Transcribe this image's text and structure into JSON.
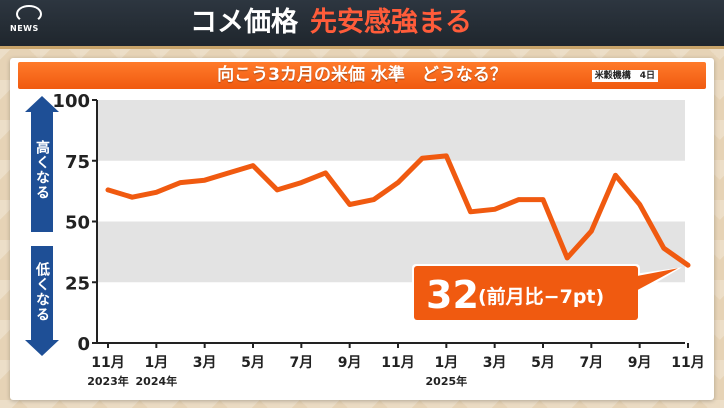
{
  "logo": {
    "brand": "NEWS"
  },
  "headline": {
    "part1": "コメ価格",
    "part2": "先安感強まる"
  },
  "subtitle": "向こう3カ月の米価 水準　どうなる？",
  "source": "米穀機構　4日",
  "side_labels": {
    "up": "高くなる",
    "down": "低くなる"
  },
  "colors": {
    "line": "#f05a10",
    "band": "#e3e3e3",
    "arrow": "#1e4f96",
    "header": "#262e37"
  },
  "chart_data": {
    "type": "line",
    "title": "向こう3カ月の米価 水準　どうなる？",
    "ylim": [
      0,
      100
    ],
    "yticks": [
      0,
      25,
      50,
      75,
      100
    ],
    "xlabels": [
      {
        "label": "11月",
        "year": "2023年"
      },
      {
        "label": "1月",
        "year": "2024年"
      },
      {
        "label": "3月",
        "year": ""
      },
      {
        "label": "5月",
        "year": ""
      },
      {
        "label": "7月",
        "year": ""
      },
      {
        "label": "9月",
        "year": ""
      },
      {
        "label": "11月",
        "year": ""
      },
      {
        "label": "1月",
        "year": "2025年"
      },
      {
        "label": "3月",
        "year": ""
      },
      {
        "label": "5月",
        "year": ""
      },
      {
        "label": "7月",
        "year": ""
      },
      {
        "label": "9月",
        "year": ""
      },
      {
        "label": "11月",
        "year": ""
      }
    ],
    "categories": [
      "2023年11月",
      "2023年12月",
      "2024年1月",
      "2024年2月",
      "2024年3月",
      "2024年4月",
      "2024年5月",
      "2024年6月",
      "2024年7月",
      "2024年8月",
      "2024年9月",
      "2024年10月",
      "2024年11月",
      "2024年12月",
      "2025年1月",
      "2025年2月",
      "2025年3月",
      "2025年4月",
      "2025年5月",
      "2025年6月",
      "2025年7月",
      "2025年8月",
      "2025年9月",
      "2025年10月",
      "2025年11月"
    ],
    "values": [
      63,
      60,
      62,
      66,
      67,
      70,
      73,
      63,
      66,
      70,
      57,
      59,
      66,
      76,
      77,
      54,
      55,
      59,
      59,
      35,
      46,
      69,
      57,
      39,
      32
    ],
    "grid_bands": [
      [
        25,
        50
      ],
      [
        75,
        100
      ]
    ],
    "annotation": {
      "value": "32",
      "text": "(前月比−7pt)"
    }
  }
}
